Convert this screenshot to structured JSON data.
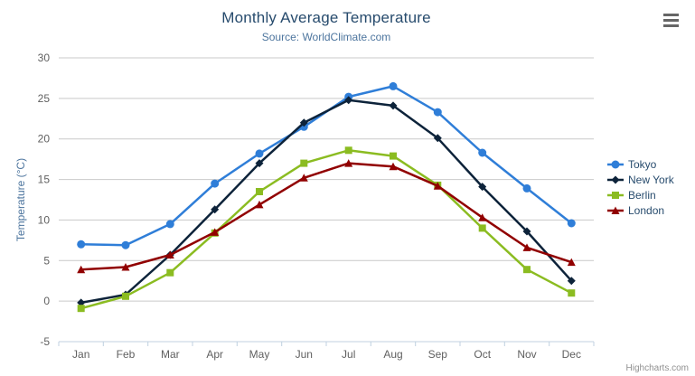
{
  "header": {
    "title": "Monthly Average Temperature",
    "subtitle": "Source: WorldClimate.com"
  },
  "icons": {
    "context_menu": "hamburger-icon"
  },
  "credit": {
    "label": "Highcharts.com"
  },
  "chart_data": {
    "type": "line",
    "title": "Monthly Average Temperature",
    "subtitle": "Source: WorldClimate.com",
    "xlabel": "",
    "ylabel": "Temperature (°C)",
    "categories": [
      "Jan",
      "Feb",
      "Mar",
      "Apr",
      "May",
      "Jun",
      "Jul",
      "Aug",
      "Sep",
      "Oct",
      "Nov",
      "Dec"
    ],
    "ylim": [
      -5,
      30
    ],
    "y_ticks": [
      -5,
      0,
      5,
      10,
      15,
      20,
      25,
      30
    ],
    "grid": true,
    "legend_position": "right",
    "series": [
      {
        "name": "Tokyo",
        "color": "#2f7ed8",
        "marker": "circle",
        "values": [
          7.0,
          6.9,
          9.5,
          14.5,
          18.2,
          21.5,
          25.2,
          26.5,
          23.3,
          18.3,
          13.9,
          9.6
        ]
      },
      {
        "name": "New York",
        "color": "#0d233a",
        "marker": "diamond",
        "values": [
          -0.2,
          0.8,
          5.7,
          11.3,
          17.0,
          22.0,
          24.8,
          24.1,
          20.1,
          14.1,
          8.6,
          2.5
        ]
      },
      {
        "name": "Berlin",
        "color": "#8bbc21",
        "marker": "square",
        "values": [
          -0.9,
          0.6,
          3.5,
          8.4,
          13.5,
          17.0,
          18.6,
          17.9,
          14.3,
          9.0,
          3.9,
          1.0
        ]
      },
      {
        "name": "London",
        "color": "#910000",
        "marker": "triangle",
        "values": [
          3.9,
          4.2,
          5.7,
          8.5,
          11.9,
          15.2,
          17.0,
          16.6,
          14.2,
          10.3,
          6.6,
          4.8
        ]
      }
    ],
    "style": {
      "grid_color": "#c9c9c9",
      "axis_line_color": "#c0d0e0",
      "label_color": "#606060",
      "title_color": "#274b6d",
      "subtitle_color": "#4d759e",
      "legend_text_color": "#274b6d"
    }
  }
}
